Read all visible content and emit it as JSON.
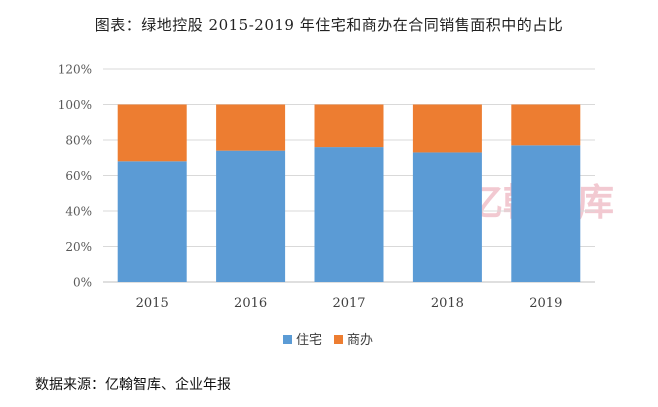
{
  "title": "图表：绿地控股 2015-2019 年住宅和商办在合同销售面积中的占比",
  "source": "数据来源：亿翰智库、企业年报",
  "watermark": "亿翰智库",
  "colors": {
    "residential": "#5B9BD5",
    "commercial": "#ED7D31",
    "grid": "#d9d9d9",
    "axis_text": "#595959"
  },
  "chart_data": {
    "type": "bar",
    "stacked": true,
    "categories": [
      "2015",
      "2016",
      "2017",
      "2018",
      "2019"
    ],
    "series": [
      {
        "name": "住宅",
        "values": [
          68,
          74,
          76,
          73,
          77
        ]
      },
      {
        "name": "商办",
        "values": [
          32,
          26,
          24,
          27,
          23
        ]
      }
    ],
    "ylim": [
      0,
      120
    ],
    "yticks": [
      0,
      20,
      40,
      60,
      80,
      100,
      120
    ],
    "ytick_labels": [
      "0%",
      "20%",
      "40%",
      "60%",
      "80%",
      "100%",
      "120%"
    ],
    "grid": true,
    "legend_position": "bottom"
  }
}
